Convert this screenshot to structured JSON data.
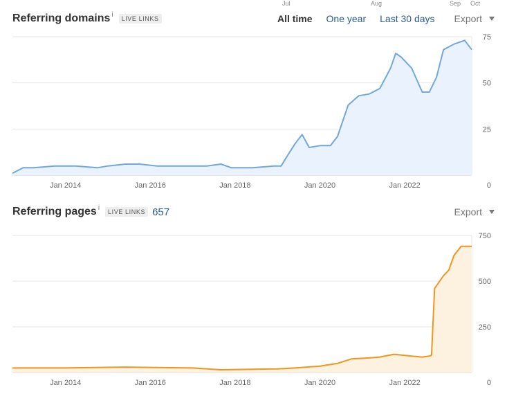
{
  "top_clipped": [
    "Jul",
    "Aug",
    "Sep",
    "Oct"
  ],
  "referring_domains": {
    "title": "Referring domains",
    "info_mark": "i",
    "badge": "LIVE LINKS",
    "ranges": [
      "All time",
      "One year",
      "Last 30 days"
    ],
    "active_range": "All time",
    "export_label": "Export"
  },
  "referring_pages": {
    "title": "Referring pages",
    "info_mark": "i",
    "badge": "LIVE LINKS",
    "count": "657",
    "export_label": "Export"
  },
  "colors": {
    "domains_line": "#6fa8dc",
    "domains_fill": "#eaf3fd",
    "pages_line": "#f0961e",
    "pages_fill": "#fdf1e0",
    "grid": "#e6e6e6"
  },
  "chart_data": [
    {
      "type": "area",
      "title": "Referring domains",
      "x_start": "2012-10-01",
      "x_end": "2023-08-01",
      "x_ticks": [
        "Jan 2014",
        "Jan 2016",
        "Jan 2018",
        "Jan 2020",
        "Jan 2022"
      ],
      "y_ticks": [
        0,
        25,
        50,
        75
      ],
      "ylim": [
        0,
        75
      ],
      "grid": true,
      "series": [
        {
          "x": [
            "2012-10-01",
            "2013-01-01",
            "2013-04-01",
            "2013-10-01",
            "2014-04-01",
            "2014-10-01",
            "2015-01-01",
            "2015-06-01",
            "2015-10-01",
            "2016-03-01",
            "2016-08-01",
            "2017-01-01",
            "2017-05-01",
            "2017-09-01",
            "2017-12-01",
            "2018-06-01",
            "2018-12-01",
            "2019-02-01",
            "2019-04-01",
            "2019-06-01",
            "2019-08-01",
            "2019-10-01",
            "2020-01-01",
            "2020-04-01",
            "2020-06-01",
            "2020-09-01",
            "2020-12-01",
            "2021-03-01",
            "2021-06-01",
            "2021-09-01",
            "2021-10-15",
            "2021-12-01",
            "2022-03-01",
            "2022-06-01",
            "2022-08-01",
            "2022-10-01",
            "2022-12-01",
            "2023-03-01",
            "2023-06-01",
            "2023-08-01"
          ],
          "values": [
            1,
            4,
            4,
            5,
            5,
            4,
            5,
            6,
            6,
            5,
            5,
            5,
            5,
            6,
            4,
            4,
            5,
            5,
            11,
            17,
            22,
            15,
            16,
            16,
            21,
            38,
            43,
            44,
            47,
            58,
            66,
            64,
            58,
            45,
            45,
            53,
            68,
            71,
            73,
            68
          ]
        }
      ]
    },
    {
      "type": "area",
      "title": "Referring pages",
      "x_start": "2012-10-01",
      "x_end": "2023-08-01",
      "x_ticks": [
        "Jan 2014",
        "Jan 2016",
        "Jan 2018",
        "Jan 2020",
        "Jan 2022"
      ],
      "y_ticks": [
        0,
        250,
        500,
        750
      ],
      "ylim": [
        0,
        750
      ],
      "grid": true,
      "series": [
        {
          "x": [
            "2012-10-01",
            "2014-01-01",
            "2015-06-01",
            "2017-01-01",
            "2017-09-01",
            "2018-06-01",
            "2019-01-01",
            "2019-06-01",
            "2020-01-01",
            "2020-06-01",
            "2020-10-01",
            "2021-03-01",
            "2021-06-01",
            "2021-10-01",
            "2022-03-01",
            "2022-06-01",
            "2022-08-01",
            "2022-08-20",
            "2022-09-15",
            "2022-12-01",
            "2023-01-15",
            "2023-03-01",
            "2023-05-01",
            "2023-08-01"
          ],
          "values": [
            25,
            25,
            30,
            25,
            15,
            18,
            20,
            25,
            35,
            50,
            75,
            80,
            85,
            100,
            90,
            85,
            90,
            95,
            460,
            530,
            560,
            640,
            690,
            690
          ]
        }
      ]
    }
  ]
}
